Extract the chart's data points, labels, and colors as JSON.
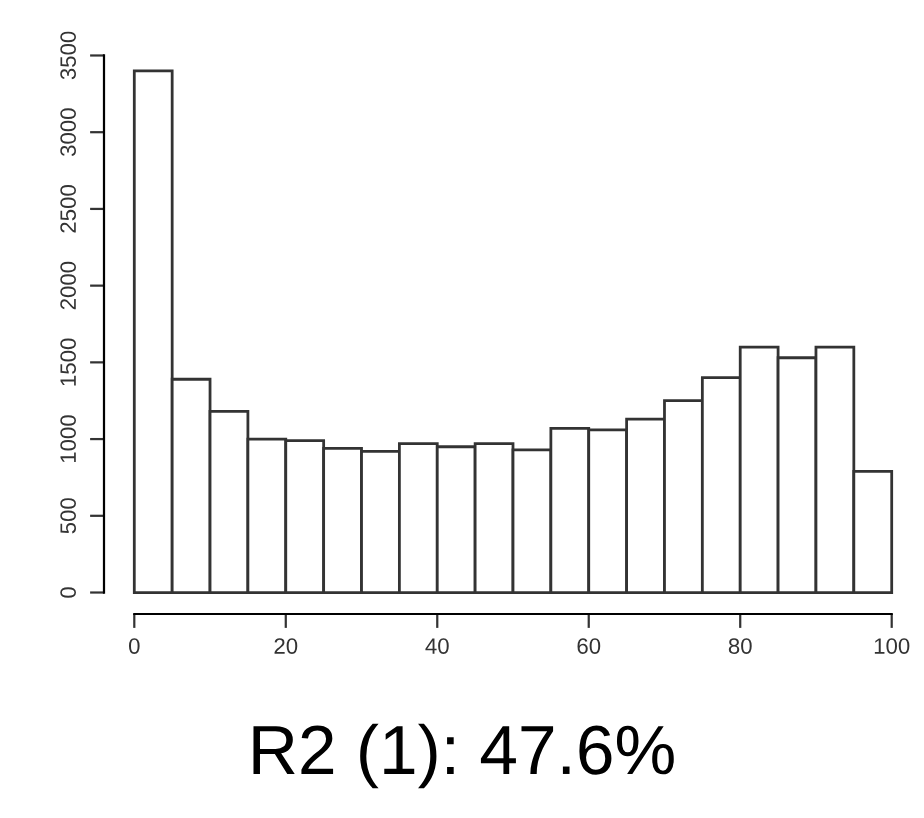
{
  "chart_data": {
    "type": "histogram",
    "title": "R2 (1): 47.6%",
    "bins": [
      0,
      5,
      10,
      15,
      20,
      25,
      30,
      35,
      40,
      45,
      50,
      55,
      60,
      65,
      70,
      75,
      80,
      85,
      90,
      95,
      100
    ],
    "values": [
      3400,
      1390,
      1180,
      1000,
      990,
      940,
      920,
      970,
      950,
      970,
      930,
      1070,
      1060,
      1130,
      1250,
      1400,
      1600,
      1530,
      1600,
      790
    ],
    "color": "#ffffff",
    "xlim": [
      0,
      100
    ],
    "xticks": [
      0,
      20,
      40,
      60,
      80,
      100
    ],
    "ylim": [
      0,
      3500
    ],
    "yticks": [
      0,
      500,
      1000,
      1500,
      2000,
      2500,
      3000,
      3500
    ],
    "grid": false
  }
}
